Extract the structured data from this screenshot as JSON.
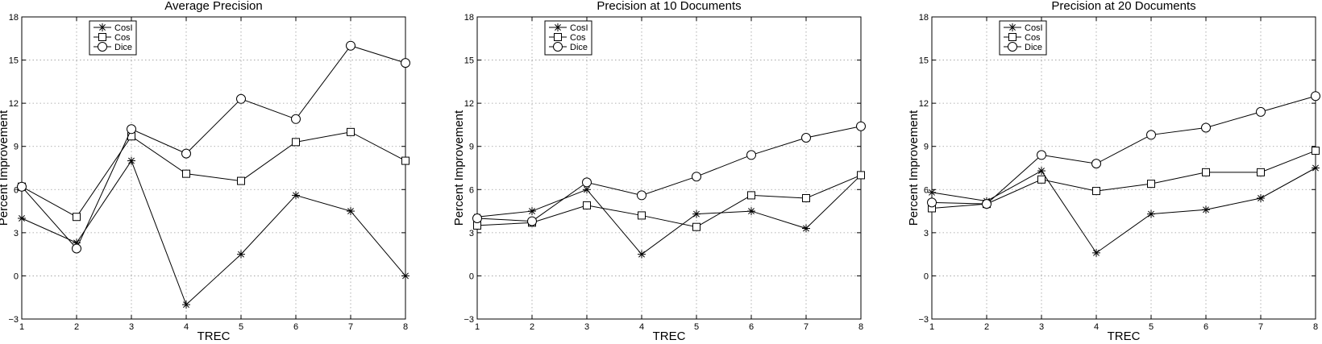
{
  "chart_data": [
    {
      "type": "line",
      "title": "Average Precision",
      "xlabel": "TREC",
      "ylabel": "Percent Improvement",
      "x": [
        1,
        2,
        3,
        4,
        5,
        6,
        7,
        8
      ],
      "xlim": [
        1,
        8
      ],
      "ylim": [
        -3,
        18
      ],
      "yticks": [
        -3,
        0,
        3,
        6,
        9,
        12,
        15,
        18
      ],
      "grid": true,
      "legend_position": "top-left",
      "series": [
        {
          "name": "CosI",
          "marker": "star",
          "values": [
            4.0,
            2.3,
            8.0,
            -2.0,
            1.5,
            5.6,
            4.5,
            0.0
          ]
        },
        {
          "name": "Cos",
          "marker": "square",
          "values": [
            6.2,
            4.1,
            9.7,
            7.1,
            6.6,
            9.3,
            10.0,
            8.0
          ]
        },
        {
          "name": "Dice",
          "marker": "circle",
          "values": [
            6.2,
            1.9,
            10.2,
            8.5,
            12.3,
            10.9,
            16.0,
            14.8
          ]
        }
      ]
    },
    {
      "type": "line",
      "title": "Precision at 10 Documents",
      "xlabel": "TREC",
      "ylabel": "Percent Improvement",
      "x": [
        1,
        2,
        3,
        4,
        5,
        6,
        7,
        8
      ],
      "xlim": [
        1,
        8
      ],
      "ylim": [
        -3,
        18
      ],
      "yticks": [
        -3,
        0,
        3,
        6,
        9,
        12,
        15,
        18
      ],
      "grid": true,
      "legend_position": "top-left",
      "series": [
        {
          "name": "CosI",
          "marker": "star",
          "values": [
            4.1,
            4.5,
            6.0,
            1.5,
            4.3,
            4.5,
            3.3,
            7.0
          ]
        },
        {
          "name": "Cos",
          "marker": "square",
          "values": [
            3.5,
            3.7,
            4.9,
            4.2,
            3.4,
            5.6,
            5.4,
            7.0
          ]
        },
        {
          "name": "Dice",
          "marker": "circle",
          "values": [
            4.0,
            3.8,
            6.5,
            5.6,
            6.9,
            8.4,
            9.6,
            10.4
          ]
        }
      ]
    },
    {
      "type": "line",
      "title": "Precision at 20 Documents",
      "xlabel": "TREC",
      "ylabel": "Percent Improvement",
      "x": [
        1,
        2,
        3,
        4,
        5,
        6,
        7,
        8
      ],
      "xlim": [
        1,
        8
      ],
      "ylim": [
        -3,
        18
      ],
      "yticks": [
        -3,
        0,
        3,
        6,
        9,
        12,
        15,
        18
      ],
      "grid": true,
      "legend_position": "top-left",
      "series": [
        {
          "name": "CosI",
          "marker": "star",
          "values": [
            5.8,
            5.2,
            7.3,
            1.6,
            4.3,
            4.6,
            5.4,
            7.5
          ]
        },
        {
          "name": "Cos",
          "marker": "square",
          "values": [
            4.7,
            5.0,
            6.7,
            5.9,
            6.4,
            7.2,
            7.2,
            8.7
          ]
        },
        {
          "name": "Dice",
          "marker": "circle",
          "values": [
            5.1,
            5.0,
            8.4,
            7.8,
            9.8,
            10.3,
            11.4,
            12.5
          ]
        }
      ]
    }
  ]
}
